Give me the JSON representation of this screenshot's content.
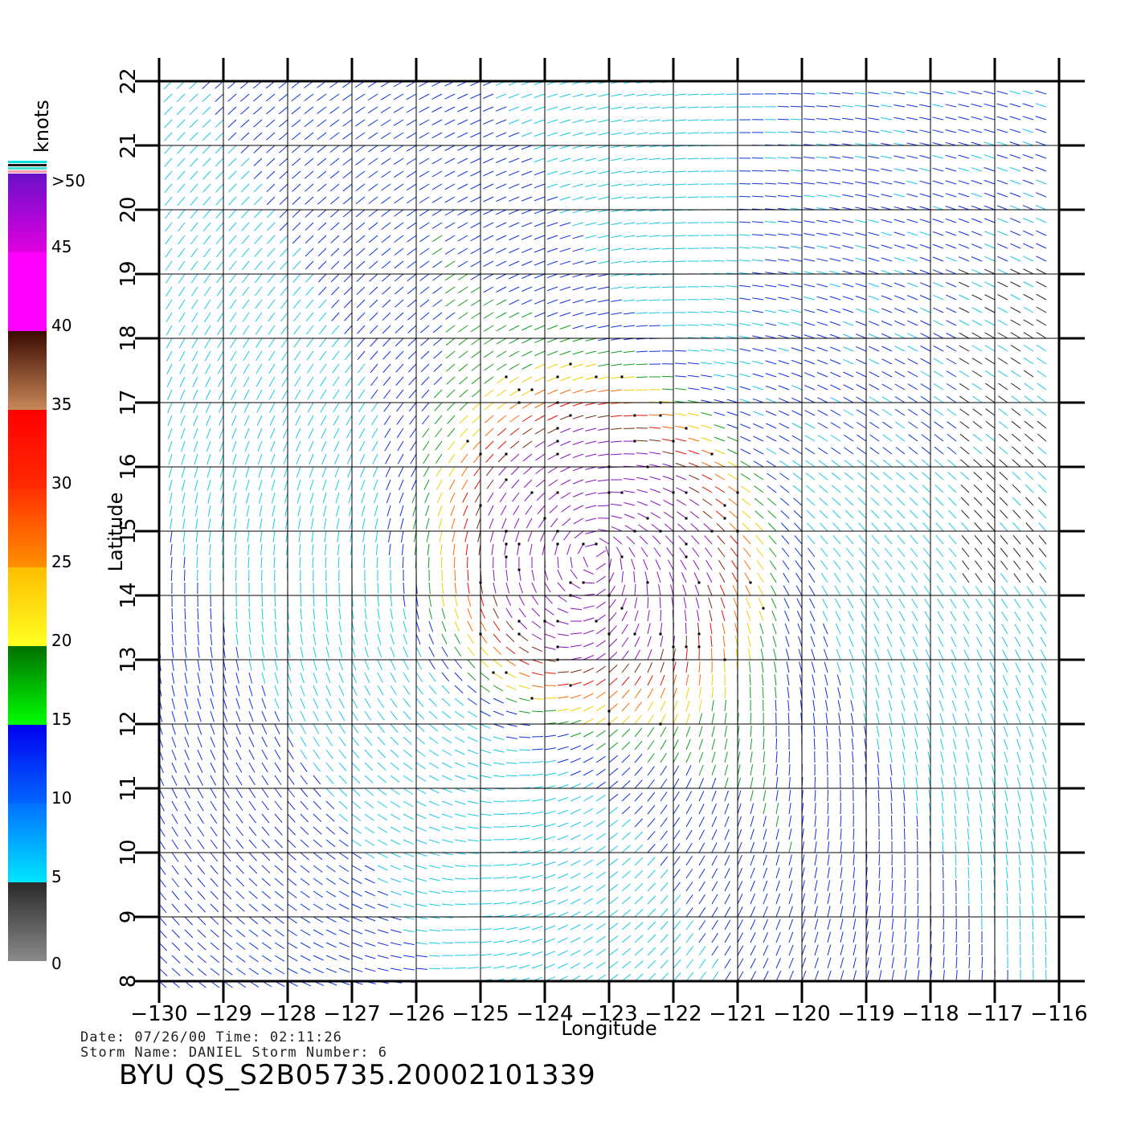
{
  "chart_data": {
    "type": "wind-vector",
    "xlabel": "Longitude",
    "ylabel": "Latitude",
    "xlim": [
      -130,
      -116
    ],
    "ylim": [
      8,
      22
    ],
    "x_ticks": [
      "−130",
      "−129",
      "−128",
      "−127",
      "−126",
      "−125",
      "−124",
      "−123",
      "−122",
      "−121",
      "−120",
      "−119",
      "−118",
      "−117",
      "−116"
    ],
    "y_ticks": [
      "8",
      "9",
      "10",
      "11",
      "12",
      "13",
      "14",
      "15",
      "16",
      "17",
      "18",
      "19",
      "20",
      "21",
      "22"
    ],
    "grid": true,
    "storm_center": {
      "lon": -123.2,
      "lat": 14.7
    },
    "colorbar": {
      "unit": "knots",
      "ticks": [
        {
          "value": 0,
          "label": "0"
        },
        {
          "value": 5,
          "label": "5"
        },
        {
          "value": 10,
          "label": "10"
        },
        {
          "value": 15,
          "label": "15"
        },
        {
          "value": 20,
          "label": "20"
        },
        {
          "value": 25,
          "label": "25"
        },
        {
          "value": 30,
          "label": "30"
        },
        {
          "value": 35,
          "label": "35"
        },
        {
          "value": 40,
          "label": "40"
        },
        {
          "value": 45,
          "label": "45"
        },
        {
          "value": 50,
          "label": ">50"
        }
      ],
      "bands": [
        {
          "from": 0,
          "to": 5,
          "top": "#2a2a2a",
          "bottom": "#8a8a8a"
        },
        {
          "from": 5,
          "to": 10,
          "top": "#0070ff",
          "bottom": "#00e6ff"
        },
        {
          "from": 10,
          "to": 15,
          "top": "#0000ee",
          "bottom": "#0066ff"
        },
        {
          "from": 15,
          "to": 20,
          "top": "#007000",
          "bottom": "#00ff00"
        },
        {
          "from": 20,
          "to": 25,
          "top": "#ffbe00",
          "bottom": "#ffff22"
        },
        {
          "from": 25,
          "to": 30,
          "top": "#ff3000",
          "bottom": "#ff9000"
        },
        {
          "from": 30,
          "to": 35,
          "top": "#ff0000",
          "bottom": "#ff2a00"
        },
        {
          "from": 35,
          "to": 40,
          "top": "#3a0a00",
          "bottom": "#c88858"
        },
        {
          "from": 40,
          "to": 45,
          "top": "#ff00ff",
          "bottom": "#ff00ff"
        },
        {
          "from": 45,
          "to": 50,
          "top": "#6a10c8",
          "bottom": "#e000e0"
        }
      ]
    }
  },
  "info": {
    "date_line": "Date: 07/26/00   Time: 02:11:26",
    "storm_line": "Storm Name: DANIEL   Storm Number: 6",
    "filename": "BYU QS_S2B05735.20002101339"
  }
}
